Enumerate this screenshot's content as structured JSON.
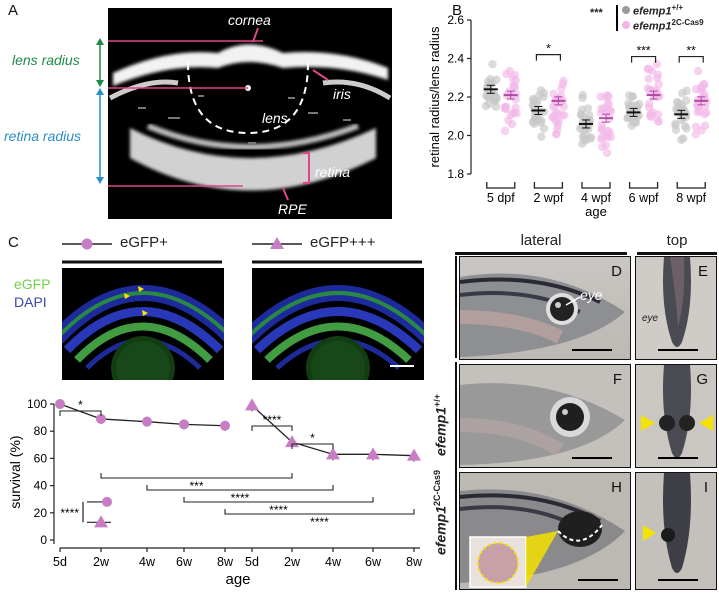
{
  "panelA": {
    "letter": "A",
    "labels": {
      "cornea": "cornea",
      "iris": "iris",
      "lens": "lens",
      "retina": "retina",
      "rpe": "RPE",
      "lens_radius": "lens radius",
      "retina_radius": "retina radius"
    },
    "colors": {
      "lens_radius": "#1e8a4a",
      "retina_radius": "#2a8fc8",
      "lines": "#e0458a"
    }
  },
  "panelB": {
    "letter": "B",
    "legend": {
      "wt": "efemp1",
      "wt_sup": "+/+",
      "mut": "efemp1",
      "mut_sup": "2C-Cas9",
      "sig": "***"
    },
    "chart_data": {
      "type": "scatter",
      "ylabel": "retinal radius/lens radius",
      "xlabel": "age",
      "ylim": [
        1.8,
        2.6
      ],
      "yticks": [
        "1.8",
        "2.0",
        "2.2",
        "2.4",
        "2.6"
      ],
      "categories": [
        "5 dpf",
        "2 wpf",
        "4 wpf",
        "6 wpf",
        "8 wpf"
      ],
      "series": [
        {
          "name": "efemp1+/+",
          "color": "#9a9a9a",
          "means": [
            2.24,
            2.13,
            2.06,
            2.12,
            2.11
          ]
        },
        {
          "name": "efemp12C-Cas9",
          "color": "#e07ad4",
          "means": [
            2.21,
            2.18,
            2.09,
            2.21,
            2.18
          ]
        }
      ],
      "significance": [
        "",
        "*",
        "",
        "***",
        "**"
      ]
    }
  },
  "panelC": {
    "letter": "C",
    "legend": {
      "g1": "eGFP+",
      "g2": "eGFP+++"
    },
    "stain_labels": {
      "egfp": "eGFP",
      "dapi": "DAPI"
    },
    "chart_data": {
      "type": "line",
      "ylabel": "survival (%)",
      "xlabel": "age",
      "ylim": [
        0,
        100
      ],
      "yticks": [
        "0",
        "20",
        "40",
        "60",
        "80",
        "100"
      ],
      "categories": [
        "5d",
        "2w",
        "4w",
        "6w",
        "8w"
      ],
      "series": [
        {
          "name": "eGFP+",
          "marker": "circle",
          "values": [
            100,
            89,
            87,
            85,
            84
          ]
        },
        {
          "name": "eGFP+++",
          "marker": "triangle",
          "values": [
            99,
            72,
            63,
            63,
            62
          ]
        }
      ],
      "inset": {
        "circle": 28,
        "triangle": 13,
        "sig": "****"
      },
      "brackets": [
        "*",
        "****",
        "*",
        "***",
        "****",
        "****",
        "****"
      ]
    }
  },
  "panelD": {
    "headers": {
      "lateral": "lateral",
      "top": "top"
    },
    "genotype_wt": "efemp1",
    "genotype_wt_sup": "+/+",
    "genotype_mut": "efemp1",
    "genotype_mut_sup": "2C-Cas9",
    "letters": {
      "D": "D",
      "E": "E",
      "F": "F",
      "G": "G",
      "H": "H",
      "I": "I"
    },
    "eye_label_D": "eye",
    "eye_label_E": "eye"
  }
}
